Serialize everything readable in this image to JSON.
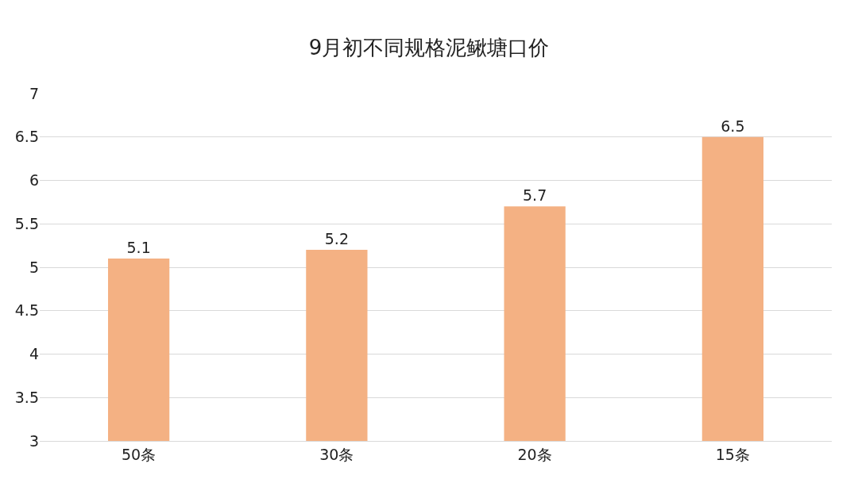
{
  "chart_data": {
    "type": "bar",
    "title": "9月初不同规格泥鳅塘口价",
    "categories": [
      "50条",
      "30条",
      "20条",
      "15条"
    ],
    "values": [
      5.1,
      5.2,
      5.7,
      6.5
    ],
    "color": "#f4b183",
    "ylim": [
      3,
      7
    ],
    "yticks": [
      3,
      3.5,
      4,
      4.5,
      5,
      5.5,
      6,
      6.5,
      7
    ],
    "grid": "y",
    "data_labels": true
  }
}
